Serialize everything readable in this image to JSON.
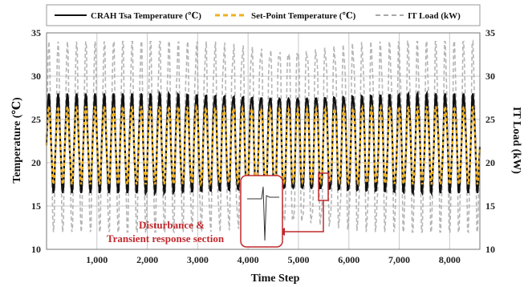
{
  "chart_data": {
    "type": "line",
    "xlabel": "Time Step",
    "ylabel_left": "Temperature (℃)",
    "ylabel_right": "IT Load (kW)",
    "xlim": [
      0,
      8600
    ],
    "ylim_left": [
      10,
      35
    ],
    "ylim_right": [
      10,
      35
    ],
    "x_ticks": [
      1000,
      2000,
      3000,
      4000,
      5000,
      6000,
      7000,
      8000
    ],
    "x_tick_labels": [
      "1,000",
      "2,000",
      "3,000",
      "4,000",
      "5,000",
      "6,000",
      "7,000",
      "8,000"
    ],
    "y_ticks": [
      10,
      15,
      20,
      25,
      30,
      35
    ],
    "y_tick_labels": [
      "10",
      "15",
      "20",
      "25",
      "30",
      "35"
    ],
    "grid": true,
    "legend_position": "top",
    "series": [
      {
        "name": "CRAH Tsa Temperature (℃)",
        "axis": "left",
        "color": "#111111",
        "style": "solid",
        "cycles": 47,
        "min": 16.5,
        "max": 28.0
      },
      {
        "name": "Set-Point Temperature (℃)",
        "axis": "left",
        "color": "#f0b020",
        "style": "dashed",
        "cycles": 47,
        "min": 17.5,
        "max": 26.5
      },
      {
        "name": "IT Load (kW)",
        "axis": "right",
        "color": "#a8a8a8",
        "style": "dashed",
        "cycles": 47,
        "min": 12.0,
        "max": 34.0
      }
    ],
    "annotation": {
      "text_line1": "Disturbance &",
      "text_line2": "Transient response section",
      "x": 5500,
      "y": 17.6,
      "color": "#c0282c"
    }
  }
}
